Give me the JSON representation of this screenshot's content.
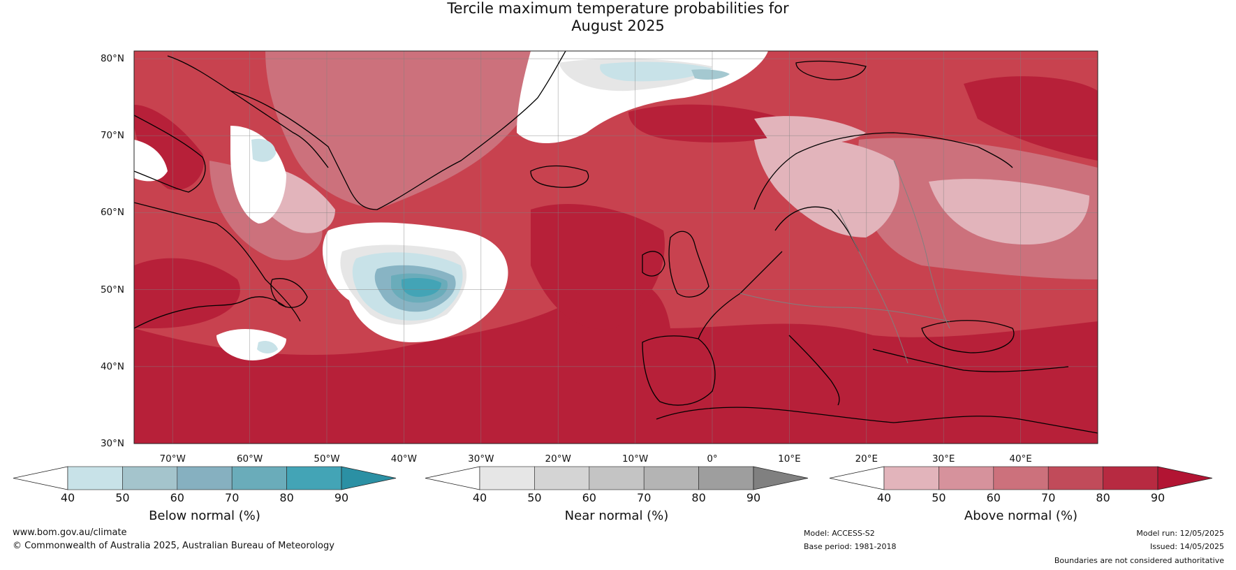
{
  "title_line1": "Tercile maximum temperature probabilities for",
  "title_line2": "August 2025",
  "map": {
    "lat_labels": [
      "80°N",
      "70°N",
      "60°N",
      "50°N",
      "40°N",
      "30°N"
    ],
    "lon_labels": [
      "70°W",
      "60°W",
      "50°W",
      "40°W",
      "30°W",
      "20°W",
      "10°W",
      "0°",
      "10°E",
      "20°E",
      "30°E",
      "40°E"
    ],
    "colors": {
      "ocean_base": "#c8424f",
      "above_40_50": "#e2b4bb",
      "above_50_60": "#d6929c",
      "above_60_70": "#cc717c",
      "above_70_80": "#c14b5a",
      "above_80_90": "#b72039",
      "near_40_50": "#ffffff",
      "near_50_60": "#e6e6e6",
      "below_40_50": "#c8e2e8",
      "below_50_60": "#a4c8d0",
      "below_60_70": "#88b4c4",
      "below_70_80": "#6aacba",
      "below_80_90": "#43a4b6",
      "coastline": "#000000",
      "border": "#808080",
      "gridline": "#808080"
    }
  },
  "colorbars": [
    {
      "label": "Below normal (%)",
      "ticks": [
        "40",
        "50",
        "60",
        "70",
        "80",
        "90"
      ],
      "colors": [
        "#ffffff",
        "#c8e2e8",
        "#a4c4cc",
        "#86b0c0",
        "#6aacba",
        "#43a4b6",
        "#2b90a4"
      ]
    },
    {
      "label": "Near normal (%)",
      "ticks": [
        "40",
        "50",
        "60",
        "70",
        "80",
        "90"
      ],
      "colors": [
        "#ffffff",
        "#e6e6e6",
        "#d4d4d4",
        "#c4c4c4",
        "#b4b4b4",
        "#9e9e9e",
        "#808080"
      ]
    },
    {
      "label": "Above normal (%)",
      "ticks": [
        "40",
        "50",
        "60",
        "70",
        "80",
        "90"
      ],
      "colors": [
        "#ffffff",
        "#e2b4bb",
        "#d6929c",
        "#cc717c",
        "#c14b5a",
        "#b72a41",
        "#b21433"
      ]
    }
  ],
  "footer": {
    "website": "www.bom.gov.au/climate",
    "copyright": "© Commonwealth of Australia 2025, Australian Bureau of Meteorology",
    "model": "Model: ACCESS-S2",
    "base_period": "Base period: 1981-2018",
    "model_run": "Model run: 12/05/2025",
    "issued": "Issued: 14/05/2025",
    "disclaimer": "Boundaries are not considered authoritative"
  }
}
